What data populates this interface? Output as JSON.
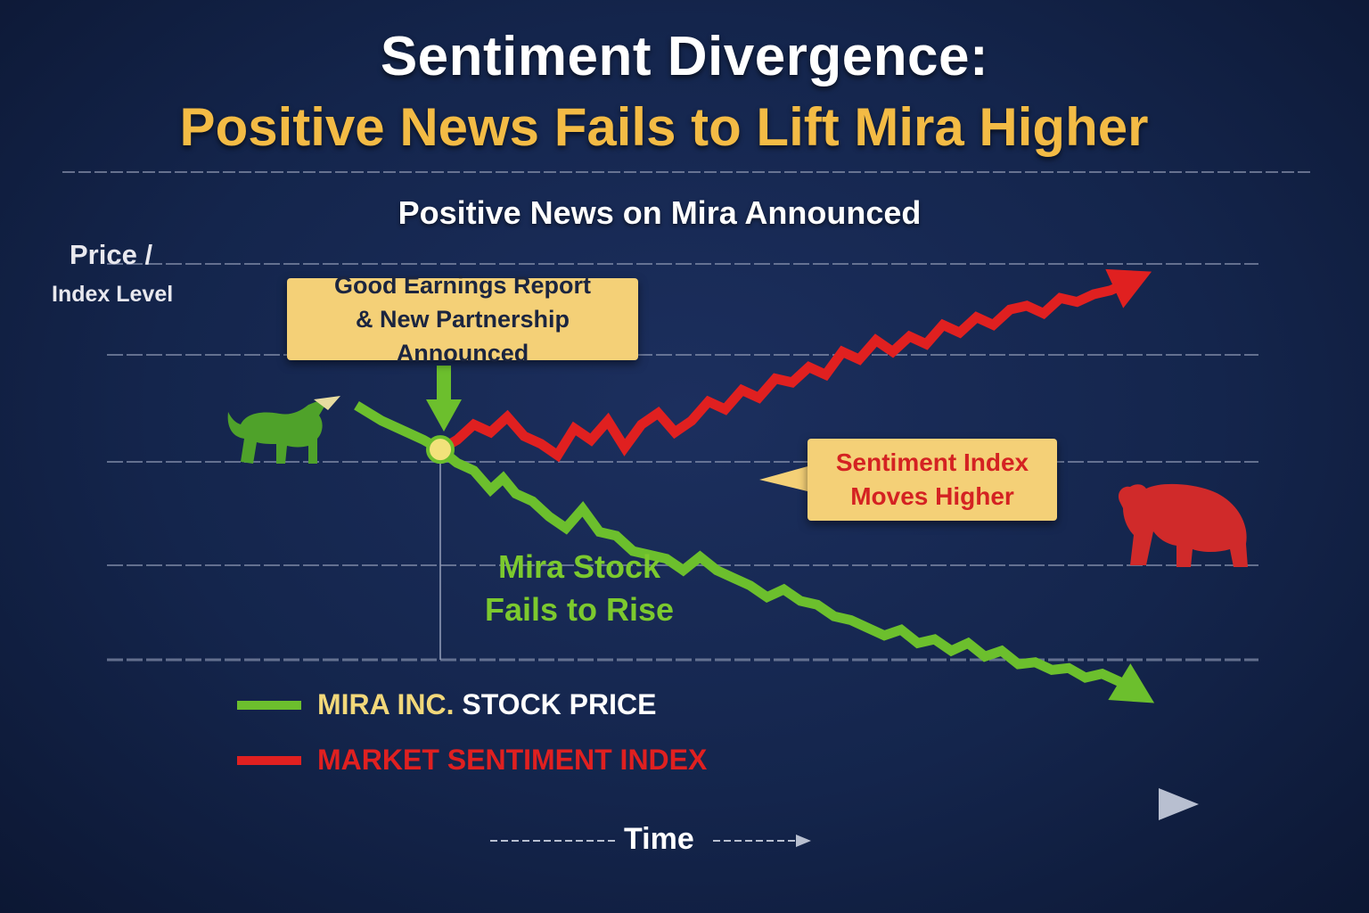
{
  "title": {
    "line1": "Sentiment Divergence:",
    "line2": "Positive News Fails to Lift Mira Higher"
  },
  "annotations": {
    "news_header": "Positive News on Mira Announced",
    "earnings_callout_line1": "Good Earnings Report",
    "earnings_callout_line2": "& New Partnership Announced",
    "sentiment_callout_line1": "Sentiment Index",
    "sentiment_callout_line2": "Moves Higher",
    "stock_label_line1": "Mira Stock",
    "stock_label_line2": "Fails to Rise"
  },
  "axes": {
    "y_label_line1": "Price /",
    "y_label_line2": "Index Level",
    "x_label": "Time"
  },
  "legend": {
    "stock_part1": "MIRA INC.",
    "stock_part2": "STOCK PRICE",
    "sentiment": "MARKET SENTIMENT INDEX"
  },
  "colors": {
    "stock": "#6cbf2d",
    "sentiment": "#e02020",
    "callout": "#f4d077",
    "event_marker": "#f2e27a"
  },
  "icons": {
    "bull": "bull-icon",
    "bear": "bear-icon"
  },
  "chart_data": {
    "type": "line",
    "title": "Sentiment Divergence: Positive News Fails to Lift Mira Higher",
    "xlabel": "Time",
    "ylabel": "Price / Index Level",
    "xlim": [
      0,
      100
    ],
    "ylim": [
      0,
      100
    ],
    "grid": true,
    "legend_position": "bottom-left",
    "event": {
      "x": 10,
      "y": 59.5,
      "label": "Good Earnings Report & New Partnership Announced"
    },
    "series": [
      {
        "name": "MIRA INC. STOCK PRICE",
        "color": "#6cbf2d",
        "x": [
          0,
          3,
          6,
          8,
          10,
          12,
          14,
          16,
          17.5,
          19,
          21,
          23,
          25,
          27,
          29,
          31,
          33,
          35,
          37,
          39,
          41,
          43,
          45,
          47,
          49,
          51,
          53,
          55,
          57,
          59,
          61,
          63,
          65,
          67,
          69,
          71,
          73,
          75,
          77,
          79,
          81,
          83,
          85,
          87,
          89,
          91,
          92.5
        ],
        "y": [
          71,
          67,
          64,
          62,
          59.5,
          56,
          54,
          49,
          52,
          48,
          46,
          42,
          39,
          44,
          38,
          37,
          33,
          32,
          31,
          28,
          31.5,
          28,
          26,
          24,
          21,
          23,
          20,
          19,
          16,
          15,
          13,
          11,
          12.5,
          9,
          10,
          7,
          9,
          5.5,
          7,
          3.5,
          4,
          2,
          2.5,
          0,
          1,
          -1,
          -3
        ]
      },
      {
        "name": "MARKET SENTIMENT INDEX",
        "color": "#e02020",
        "x": [
          10,
          12,
          14,
          16,
          18,
          20,
          22,
          24,
          26,
          28,
          30,
          32,
          34,
          36,
          38,
          40,
          42,
          44,
          46,
          48,
          50,
          52,
          54,
          56,
          58,
          60,
          62,
          64,
          66,
          68,
          70,
          72,
          74,
          76,
          78,
          80,
          82,
          84,
          86,
          88,
          90,
          92
        ],
        "y": [
          59.5,
          62,
          66,
          64,
          68,
          63,
          61,
          58,
          65,
          62,
          67,
          60,
          66,
          69,
          64,
          67,
          72,
          70,
          75,
          73,
          78,
          77,
          81,
          79,
          85,
          83,
          88,
          85,
          89,
          87,
          92,
          90,
          94,
          92,
          96,
          97,
          95,
          99,
          98,
          100,
          101,
          103
        ]
      }
    ]
  }
}
